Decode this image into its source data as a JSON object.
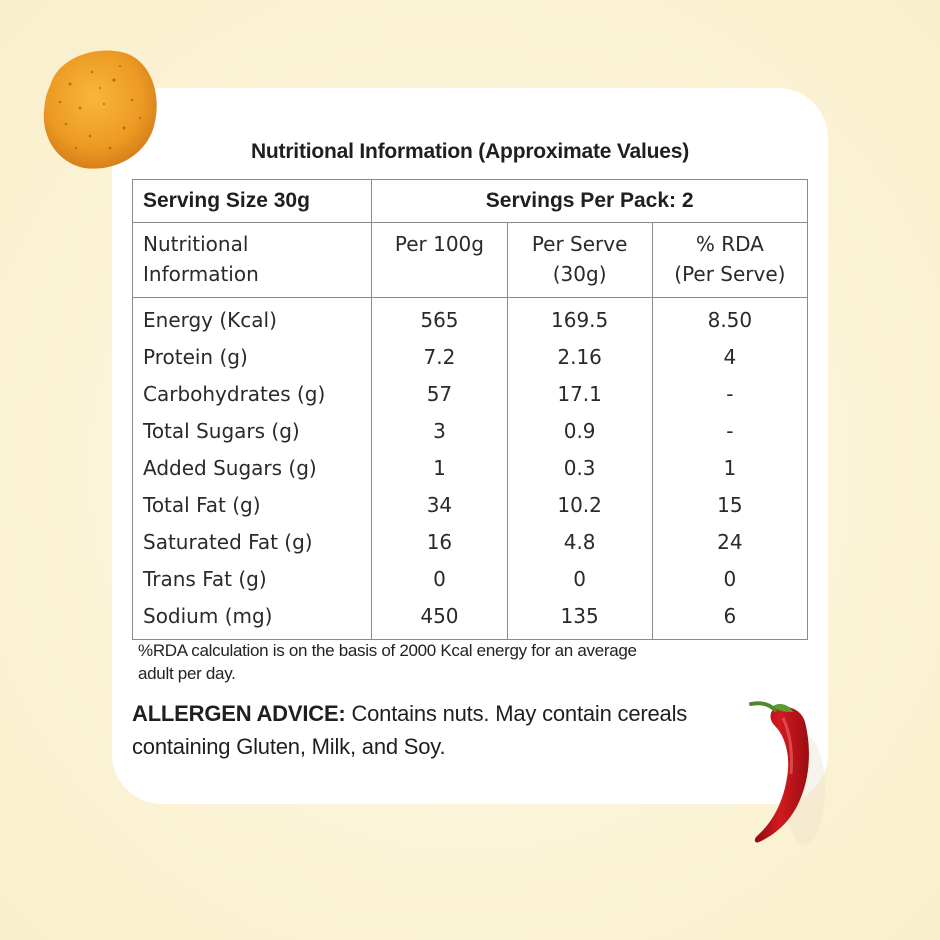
{
  "title": "Nutritional Information (Approximate Values)",
  "table": {
    "serving_size": "Serving Size 30g",
    "servings_per_pack": "Servings Per Pack: 2",
    "columns": [
      {
        "line1": "Nutritional",
        "line2": "Information"
      },
      {
        "line1": "Per 100g",
        "line2": ""
      },
      {
        "line1": "Per Serve",
        "line2": "(30g)"
      },
      {
        "line1": "% RDA",
        "line2": "(Per Serve)"
      }
    ],
    "rows": [
      {
        "name": "Energy (Kcal)",
        "per100": "565",
        "perServe": "169.5",
        "rda": "8.50"
      },
      {
        "name": "Protein (g)",
        "per100": "7.2",
        "perServe": "2.16",
        "rda": "4"
      },
      {
        "name": "Carbohydrates (g)",
        "per100": "57",
        "perServe": "17.1",
        "rda": "-"
      },
      {
        "name": "Total Sugars (g)",
        "per100": "3",
        "perServe": "0.9",
        "rda": "-"
      },
      {
        "name": "Added Sugars (g)",
        "per100": "1",
        "perServe": "0.3",
        "rda": "1"
      },
      {
        "name": "Total Fat (g)",
        "per100": "34",
        "perServe": "10.2",
        "rda": "15"
      },
      {
        "name": "Saturated Fat (g)",
        "per100": "16",
        "perServe": "4.8",
        "rda": "24"
      },
      {
        "name": "Trans Fat (g)",
        "per100": "0",
        "perServe": "0",
        "rda": "0"
      },
      {
        "name": "Sodium (mg)",
        "per100": "450",
        "perServe": "135",
        "rda": "6"
      }
    ]
  },
  "note": {
    "line1": "%RDA calculation is on the basis of 2000 Kcal energy for an average",
    "line2": "adult per day."
  },
  "allergen": {
    "label": "ALLERGEN ADVICE:",
    "text_line1": " Contains nuts. May contain cereals",
    "text_line2": "containing Gluten, Milk, and Soy."
  },
  "colors": {
    "background": "#fbf3d6",
    "card": "#ffffff",
    "chip": "#f0a32a",
    "chili": "#c8141b",
    "border": "#8c8c8c"
  },
  "icons": [
    "chip-icon",
    "chili-pepper-icon"
  ]
}
